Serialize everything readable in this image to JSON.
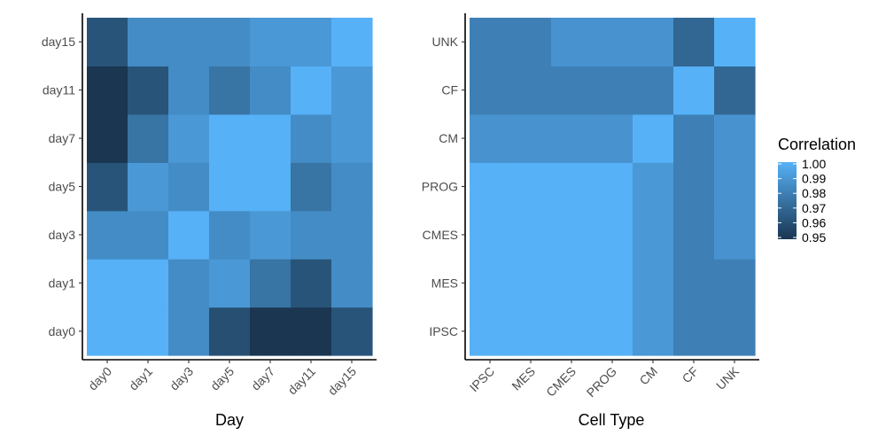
{
  "chart_data": [
    {
      "type": "heatmap",
      "xlabel": "Day",
      "ylabel": "",
      "x_categories": [
        "day0",
        "day1",
        "day3",
        "day5",
        "day7",
        "day11",
        "day15"
      ],
      "y_categories": [
        "day0",
        "day1",
        "day3",
        "day5",
        "day7",
        "day11",
        "day15"
      ],
      "values": [
        [
          1.0,
          1.0,
          0.985,
          0.96,
          0.95,
          0.95,
          0.962
        ],
        [
          1.0,
          1.0,
          0.985,
          0.99,
          0.975,
          0.962,
          0.985
        ],
        [
          0.985,
          0.985,
          1.0,
          0.985,
          0.99,
          0.985,
          0.985
        ],
        [
          0.962,
          0.99,
          0.985,
          1.0,
          1.0,
          0.975,
          0.985
        ],
        [
          0.95,
          0.975,
          0.99,
          1.0,
          1.0,
          0.985,
          0.99
        ],
        [
          0.95,
          0.962,
          0.985,
          0.975,
          0.985,
          1.0,
          0.99
        ],
        [
          0.962,
          0.985,
          0.985,
          0.985,
          0.99,
          0.99,
          1.0
        ]
      ]
    },
    {
      "type": "heatmap",
      "xlabel": "Cell Type",
      "ylabel": "",
      "x_categories": [
        "IPSC",
        "MES",
        "CMES",
        "PROG",
        "CM",
        "CF",
        "UNK"
      ],
      "y_categories": [
        "IPSC",
        "MES",
        "CMES",
        "PROG",
        "CM",
        "CF",
        "UNK"
      ],
      "values": [
        [
          1.0,
          1.0,
          1.0,
          1.0,
          0.99,
          0.98,
          0.98
        ],
        [
          1.0,
          1.0,
          1.0,
          1.0,
          0.99,
          0.98,
          0.98
        ],
        [
          1.0,
          1.0,
          1.0,
          1.0,
          0.99,
          0.98,
          0.988
        ],
        [
          1.0,
          1.0,
          1.0,
          1.0,
          0.99,
          0.98,
          0.988
        ],
        [
          0.988,
          0.988,
          0.988,
          0.988,
          1.0,
          0.98,
          0.988
        ],
        [
          0.98,
          0.98,
          0.98,
          0.98,
          0.98,
          1.0,
          0.97
        ],
        [
          0.98,
          0.98,
          0.988,
          0.988,
          0.988,
          0.97,
          1.0
        ]
      ]
    }
  ],
  "legend": {
    "title": "Correlation",
    "labels": [
      "1.00",
      "0.99",
      "0.98",
      "0.97",
      "0.96",
      "0.95"
    ],
    "min": 0.95,
    "max": 1.0,
    "color_low": "#1a3651",
    "color_high": "#56b1f7"
  }
}
